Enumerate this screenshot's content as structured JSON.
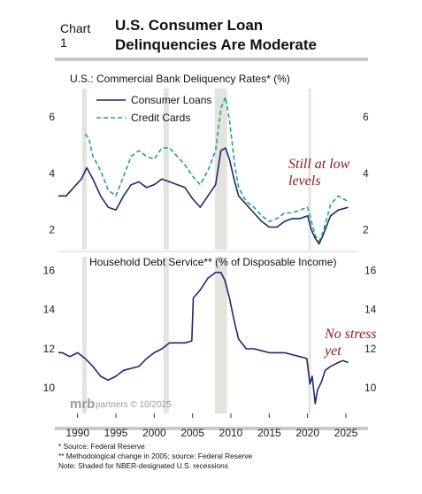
{
  "header": {
    "label": "Chart 1",
    "title_line1": "U.S. Consumer Loan",
    "title_line2": "Delinquencies Are Moderate"
  },
  "watermark": {
    "brand": "mrb",
    "text": "partners © 10/2025"
  },
  "footnotes": [
    "*  Source: Federal Reserve",
    "** Methodological change in 2005; source: Federal Reserve",
    "Note: Shaded for NBER-designated U.S. recessions"
  ],
  "colors": {
    "consumer_loans": "#1b2a6b",
    "credit_cards": "#2a9d8f",
    "recession": "#e4e4de",
    "annotation": "#8b1a1a"
  },
  "chart_data": [
    {
      "type": "line",
      "title": "U.S.: Commercial Bank Deliquency Rates* (%)",
      "xlim": [
        1987.5,
        2026.5
      ],
      "ylim": [
        1.3,
        7.0
      ],
      "yticks": [
        2,
        4,
        6
      ],
      "recessions": [
        [
          1990.6,
          1991.2
        ],
        [
          2001.2,
          2001.9
        ],
        [
          2007.9,
          2009.5
        ],
        [
          2020.1,
          2020.4
        ]
      ],
      "annotation": [
        "Still at low",
        "levels"
      ],
      "series": [
        {
          "name": "Consumer Loans",
          "style": "solid",
          "x": [
            1987.5,
            1988.5,
            1989.5,
            1990.5,
            1991.2,
            1992,
            1993,
            1994,
            1995,
            1996,
            1997,
            1998,
            1999,
            2000,
            2001,
            2002,
            2003,
            2004,
            2005,
            2006,
            2007,
            2008,
            2008.7,
            2009.3,
            2009.8,
            2010.5,
            2011,
            2012,
            2013,
            2014,
            2015,
            2016,
            2017,
            2018,
            2019,
            2020,
            2020.5,
            2021,
            2021.5,
            2022,
            2023,
            2024,
            2025.3
          ],
          "values": [
            3.2,
            3.2,
            3.5,
            3.8,
            4.2,
            3.8,
            3.2,
            2.8,
            2.7,
            3.2,
            3.6,
            3.7,
            3.5,
            3.6,
            3.8,
            3.7,
            3.6,
            3.5,
            3.1,
            2.8,
            3.2,
            3.6,
            4.8,
            4.9,
            4.5,
            3.7,
            3.2,
            2.9,
            2.6,
            2.3,
            2.1,
            2.1,
            2.3,
            2.4,
            2.4,
            2.5,
            2.0,
            1.7,
            1.5,
            1.8,
            2.5,
            2.7,
            2.8
          ]
        },
        {
          "name": "Credit Cards",
          "style": "dashed",
          "x": [
            1991,
            1991.5,
            1992,
            1993,
            1994,
            1995,
            1996,
            1997,
            1998,
            1999,
            2000,
            2001,
            2002,
            2003,
            2004,
            2005,
            2006,
            2007,
            2008,
            2008.7,
            2009.3,
            2009.8,
            2010.5,
            2011,
            2012,
            2013,
            2014,
            2015,
            2016,
            2017,
            2018,
            2019,
            2020,
            2020.5,
            2021,
            2021.5,
            2022,
            2023,
            2024,
            2025.3
          ],
          "values": [
            5.4,
            5.2,
            4.6,
            4.1,
            3.4,
            3.2,
            3.9,
            4.6,
            4.8,
            4.6,
            4.5,
            4.9,
            4.9,
            4.6,
            4.3,
            3.9,
            3.6,
            4.1,
            4.8,
            6.3,
            6.7,
            5.9,
            4.3,
            3.5,
            3.0,
            2.8,
            2.5,
            2.3,
            2.4,
            2.6,
            2.6,
            2.7,
            2.8,
            2.3,
            1.8,
            1.6,
            1.9,
            2.9,
            3.2,
            3.0
          ]
        }
      ]
    },
    {
      "type": "line",
      "title": "Household Debt Service** (% of Disposable Income)",
      "xlim": [
        1987.5,
        2026.5
      ],
      "ylim": [
        8.7,
        16.7
      ],
      "yticks": [
        10,
        12,
        14,
        16
      ],
      "xticks": [
        1990,
        1995,
        2000,
        2005,
        2010,
        2015,
        2020,
        2025
      ],
      "recessions": [
        [
          1990.6,
          1991.2
        ],
        [
          2001.2,
          2001.9
        ],
        [
          2007.9,
          2009.5
        ],
        [
          2020.1,
          2020.4
        ]
      ],
      "annotation": [
        "No stress",
        "yet"
      ],
      "series": [
        {
          "name": "",
          "style": "solid",
          "x": [
            1987.5,
            1988,
            1989,
            1990,
            1991,
            1992,
            1993,
            1994,
            1995,
            1996,
            1997,
            1998,
            1999,
            2000,
            2001,
            2002,
            2003,
            2004,
            2004.9,
            2005.1,
            2006,
            2007,
            2008,
            2008.7,
            2009.2,
            2009.8,
            2010.5,
            2011,
            2012,
            2013,
            2014,
            2015,
            2016,
            2017,
            2018,
            2019,
            2019.9,
            2020.3,
            2020.6,
            2021,
            2021.3,
            2021.8,
            2022.3,
            2023,
            2024,
            2024.6,
            2025.3
          ],
          "values": [
            11.8,
            11.8,
            11.6,
            11.8,
            11.5,
            11.1,
            10.6,
            10.4,
            10.6,
            10.9,
            11.0,
            11.1,
            11.5,
            11.8,
            12.0,
            12.3,
            12.3,
            12.3,
            12.4,
            14.6,
            15.0,
            15.6,
            15.9,
            15.9,
            15.5,
            14.6,
            13.3,
            12.5,
            12.0,
            12.0,
            11.9,
            11.8,
            11.8,
            11.8,
            11.7,
            11.6,
            11.5,
            10.2,
            10.6,
            9.2,
            9.9,
            10.3,
            10.9,
            11.1,
            11.3,
            11.4,
            11.3
          ]
        }
      ]
    }
  ]
}
